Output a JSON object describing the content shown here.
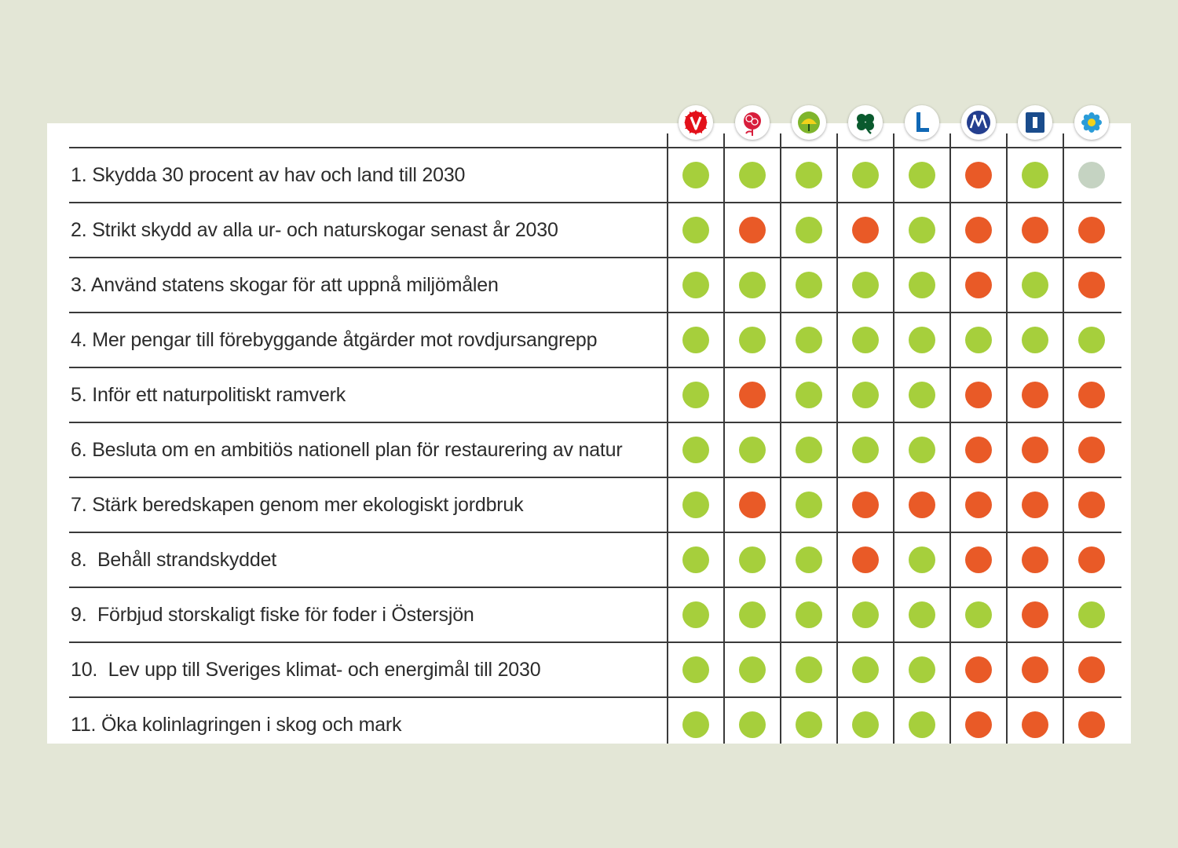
{
  "chart_data": {
    "type": "table",
    "parties": [
      {
        "name": "V",
        "icon": "v-party-logo-icon",
        "color": "#e3101a"
      },
      {
        "name": "S",
        "icon": "s-party-rose-logo-icon",
        "color": "#d81e3c"
      },
      {
        "name": "MP",
        "icon": "mp-party-sunflower-logo-icon",
        "color": "#7fb52c"
      },
      {
        "name": "C",
        "icon": "c-party-clover-logo-icon",
        "color": "#0a5a2e"
      },
      {
        "name": "L",
        "icon": "l-party-logo-icon",
        "color": "#1068b5"
      },
      {
        "name": "M",
        "icon": "m-party-logo-icon",
        "color": "#243f8f"
      },
      {
        "name": "KD",
        "icon": "kd-party-logo-icon",
        "color": "#1a4c8c"
      },
      {
        "name": "SD",
        "icon": "sd-party-flower-logo-icon",
        "color": "#2a9cd8"
      }
    ],
    "rows": [
      {
        "label": "1. Skydda 30 procent av hav och land till 2030",
        "values": [
          "yes",
          "yes",
          "yes",
          "yes",
          "yes",
          "no",
          "yes",
          "unknown"
        ]
      },
      {
        "label": "2. Strikt skydd av alla ur- och naturskogar senast år 2030",
        "values": [
          "yes",
          "no",
          "yes",
          "no",
          "yes",
          "no",
          "no",
          "no"
        ]
      },
      {
        "label": "3. Använd statens skogar för att uppnå miljömålen",
        "values": [
          "yes",
          "yes",
          "yes",
          "yes",
          "yes",
          "no",
          "yes",
          "no"
        ]
      },
      {
        "label": "4. Mer pengar till förebyggande åtgärder mot rovdjursangrepp",
        "values": [
          "yes",
          "yes",
          "yes",
          "yes",
          "yes",
          "yes",
          "yes",
          "yes"
        ]
      },
      {
        "label": "5. Inför ett naturpolitiskt ramverk",
        "values": [
          "yes",
          "no",
          "yes",
          "yes",
          "yes",
          "no",
          "no",
          "no"
        ]
      },
      {
        "label": "6. Besluta om en ambitiös nationell plan för restaurering av natur",
        "values": [
          "yes",
          "yes",
          "yes",
          "yes",
          "yes",
          "no",
          "no",
          "no"
        ]
      },
      {
        "label": "7. Stärk beredskapen genom mer ekologiskt jordbruk",
        "values": [
          "yes",
          "no",
          "yes",
          "no",
          "no",
          "no",
          "no",
          "no"
        ]
      },
      {
        "label": "8.  Behåll strandskyddet",
        "values": [
          "yes",
          "yes",
          "yes",
          "no",
          "yes",
          "no",
          "no",
          "no"
        ]
      },
      {
        "label": "9.  Förbjud storskaligt fiske för foder i Östersjön",
        "values": [
          "yes",
          "yes",
          "yes",
          "yes",
          "yes",
          "yes",
          "no",
          "yes"
        ]
      },
      {
        "label": "10.  Lev upp till Sveriges klimat- och energimål till 2030",
        "values": [
          "yes",
          "yes",
          "yes",
          "yes",
          "yes",
          "no",
          "no",
          "no"
        ]
      },
      {
        "label": "11. Öka kolinlagringen i skog och mark",
        "values": [
          "yes",
          "yes",
          "yes",
          "yes",
          "yes",
          "no",
          "no",
          "no"
        ]
      }
    ],
    "status_colors": {
      "yes": "#a6cf3c",
      "no": "#e95a27",
      "unknown": "#c5d3c2"
    }
  }
}
